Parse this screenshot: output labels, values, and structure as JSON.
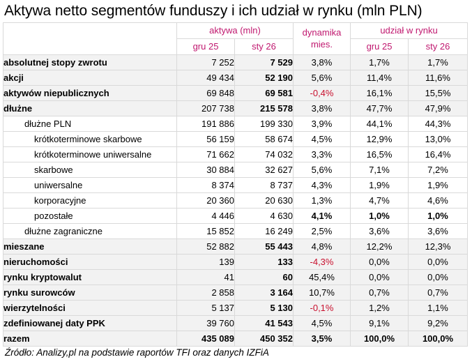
{
  "title": "Aktywa netto segmentów funduszy i ich udział w rynku (mln PLN)",
  "header": {
    "group_assets": "aktywa (mln)",
    "group_dynamics": "dynamika mies.",
    "group_share": "udział w rynku",
    "period_prev": "gru 25",
    "period_curr": "sty 26",
    "share_prev": "gru 25",
    "share_curr": "sty 26"
  },
  "colors": {
    "header_text": "#c0186f",
    "negative": "#c8102e",
    "row_shade": "#f2f2f2",
    "border": "#d9d9d9"
  },
  "rows": [
    {
      "label": "absolutnej stopy zwrotu",
      "level": 0,
      "prev": "7 252",
      "curr": "7 529",
      "dyn": "3,8%",
      "share_prev": "1,7%",
      "share_curr": "1,7%",
      "dyn_negative": false
    },
    {
      "label": "akcji",
      "level": 0,
      "prev": "49 434",
      "curr": "52 190",
      "dyn": "5,6%",
      "share_prev": "11,4%",
      "share_curr": "11,6%",
      "dyn_negative": false
    },
    {
      "label": "aktywów niepublicznych",
      "level": 0,
      "prev": "69 848",
      "curr": "69 581",
      "dyn": "-0,4%",
      "share_prev": "16,1%",
      "share_curr": "15,5%",
      "dyn_negative": true
    },
    {
      "label": "dłużne",
      "level": 0,
      "prev": "207 738",
      "curr": "215 578",
      "dyn": "3,8%",
      "share_prev": "47,7%",
      "share_curr": "47,9%",
      "dyn_negative": false
    },
    {
      "label": "dłużne PLN",
      "level": 1,
      "prev": "191 886",
      "curr": "199 330",
      "dyn": "3,9%",
      "share_prev": "44,1%",
      "share_curr": "44,3%",
      "dyn_negative": false
    },
    {
      "label": "krótkoterminowe skarbowe",
      "level": 2,
      "prev": "56 159",
      "curr": "58 674",
      "dyn": "4,5%",
      "share_prev": "12,9%",
      "share_curr": "13,0%",
      "dyn_negative": false
    },
    {
      "label": "krótkoterminowe uniwersalne",
      "level": 2,
      "prev": "71 662",
      "curr": "74 032",
      "dyn": "3,3%",
      "share_prev": "16,5%",
      "share_curr": "16,4%",
      "dyn_negative": false
    },
    {
      "label": "skarbowe",
      "level": 2,
      "prev": "30 884",
      "curr": "32 627",
      "dyn": "5,6%",
      "share_prev": "7,1%",
      "share_curr": "7,2%",
      "dyn_negative": false
    },
    {
      "label": "uniwersalne",
      "level": 2,
      "prev": "8 374",
      "curr": "8 737",
      "dyn": "4,3%",
      "share_prev": "1,9%",
      "share_curr": "1,9%",
      "dyn_negative": false
    },
    {
      "label": "korporacyjne",
      "level": 2,
      "prev": "20 360",
      "curr": "20 630",
      "dyn": "1,3%",
      "share_prev": "4,7%",
      "share_curr": "4,6%",
      "dyn_negative": false
    },
    {
      "label": "pozostałe",
      "level": 2,
      "prev": "4 446",
      "curr": "4 630",
      "dyn": "4,1%",
      "share_prev": "1,0%",
      "share_curr": "1,0%",
      "dyn_negative": false
    },
    {
      "label": "dłużne zagraniczne",
      "level": 1,
      "prev": "15 852",
      "curr": "16 249",
      "dyn": "2,5%",
      "share_prev": "3,6%",
      "share_curr": "3,6%",
      "dyn_negative": false
    },
    {
      "label": "mieszane",
      "level": 0,
      "prev": "52 882",
      "curr": "55 443",
      "dyn": "4,8%",
      "share_prev": "12,2%",
      "share_curr": "12,3%",
      "dyn_negative": false
    },
    {
      "label": "nieruchomości",
      "level": 0,
      "prev": "139",
      "curr": "133",
      "dyn": "-4,3%",
      "share_prev": "0,0%",
      "share_curr": "0,0%",
      "dyn_negative": true
    },
    {
      "label": "rynku kryptowalut",
      "level": 0,
      "prev": "41",
      "curr": "60",
      "dyn": "45,4%",
      "share_prev": "0,0%",
      "share_curr": "0,0%",
      "dyn_negative": false
    },
    {
      "label": "rynku surowców",
      "level": 0,
      "prev": "2 858",
      "curr": "3 164",
      "dyn": "10,7%",
      "share_prev": "0,7%",
      "share_curr": "0,7%",
      "dyn_negative": false
    },
    {
      "label": "wierzytelności",
      "level": 0,
      "prev": "5 137",
      "curr": "5 130",
      "dyn": "-0,1%",
      "share_prev": "1,2%",
      "share_curr": "1,1%",
      "dyn_negative": true
    },
    {
      "label": "zdefiniowanej daty PPK",
      "level": 0,
      "prev": "39 760",
      "curr": "41 543",
      "dyn": "4,5%",
      "share_prev": "9,1%",
      "share_curr": "9,2%",
      "dyn_negative": false
    }
  ],
  "total": {
    "label": "razem",
    "prev": "435 089",
    "curr": "450 352",
    "dyn": "3,5%",
    "share_prev": "100,0%",
    "share_curr": "100,0%"
  },
  "source": "Źródło: Analizy,pl na podstawie raportów TFI oraz danych IZFiA"
}
